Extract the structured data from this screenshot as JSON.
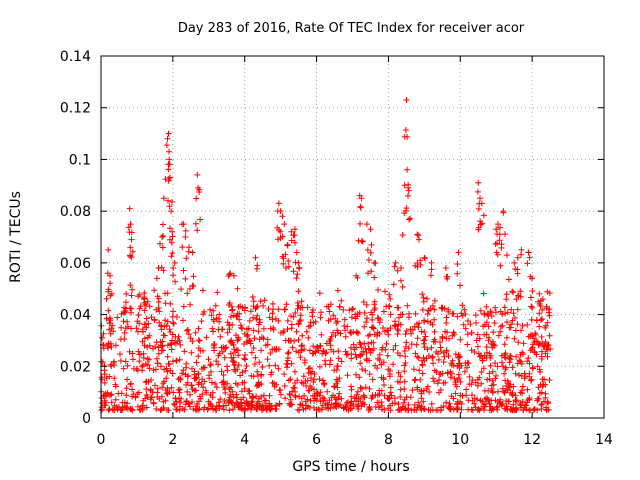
{
  "chart_data": {
    "type": "scatter",
    "title": "Day 283 of 2016, Rate Of TEC Index for receiver acor",
    "xlabel": "GPS time / hours",
    "ylabel": "ROTI / TECUs",
    "xlim": [
      0,
      14
    ],
    "ylim": [
      0,
      0.14
    ],
    "x_ticks": [
      0,
      2,
      4,
      6,
      8,
      10,
      12,
      14
    ],
    "y_ticks": [
      0,
      0.02,
      0.04,
      0.06,
      0.08,
      0.1,
      0.12,
      0.14
    ],
    "x_tick_labels": [
      "0",
      "2",
      "4",
      "6",
      "8",
      "10",
      "12",
      "14"
    ],
    "y_tick_labels": [
      "0",
      "0.02",
      "0.04",
      "0.06",
      "0.08",
      "0.1",
      "0.12",
      "0.14"
    ],
    "grid": true,
    "marker": "plus",
    "color": "#ff0000",
    "x_extent": [
      0,
      12.5
    ],
    "background_band": [
      0.003,
      0.03
    ],
    "highlight_points": [
      {
        "x": 0.2,
        "y": 0.065
      },
      {
        "x": 0.25,
        "y": 0.055
      },
      {
        "x": 0.3,
        "y": 0.048
      },
      {
        "x": 0.7,
        "y": 0.048
      },
      {
        "x": 0.8,
        "y": 0.081
      },
      {
        "x": 0.82,
        "y": 0.075
      },
      {
        "x": 0.85,
        "y": 0.069
      },
      {
        "x": 1.2,
        "y": 0.046
      },
      {
        "x": 1.3,
        "y": 0.045
      },
      {
        "x": 1.6,
        "y": 0.058
      },
      {
        "x": 1.7,
        "y": 0.07
      },
      {
        "x": 1.75,
        "y": 0.085
      },
      {
        "x": 1.85,
        "y": 0.108
      },
      {
        "x": 1.88,
        "y": 0.11
      },
      {
        "x": 1.9,
        "y": 0.1
      },
      {
        "x": 1.92,
        "y": 0.093
      },
      {
        "x": 1.95,
        "y": 0.08
      },
      {
        "x": 1.98,
        "y": 0.072
      },
      {
        "x": 2.05,
        "y": 0.06
      },
      {
        "x": 2.3,
        "y": 0.075
      },
      {
        "x": 2.35,
        "y": 0.07
      },
      {
        "x": 2.45,
        "y": 0.066
      },
      {
        "x": 2.55,
        "y": 0.064
      },
      {
        "x": 2.68,
        "y": 0.094
      },
      {
        "x": 2.7,
        "y": 0.089
      },
      {
        "x": 3.6,
        "y": 0.056
      },
      {
        "x": 3.7,
        "y": 0.055
      },
      {
        "x": 3.8,
        "y": 0.05
      },
      {
        "x": 4.3,
        "y": 0.062
      },
      {
        "x": 4.35,
        "y": 0.059
      },
      {
        "x": 4.95,
        "y": 0.083
      },
      {
        "x": 5.0,
        "y": 0.08
      },
      {
        "x": 5.05,
        "y": 0.078
      },
      {
        "x": 5.1,
        "y": 0.075
      },
      {
        "x": 5.2,
        "y": 0.067
      },
      {
        "x": 5.3,
        "y": 0.072
      },
      {
        "x": 5.4,
        "y": 0.073
      },
      {
        "x": 5.45,
        "y": 0.064
      },
      {
        "x": 5.5,
        "y": 0.06
      },
      {
        "x": 7.1,
        "y": 0.055
      },
      {
        "x": 7.2,
        "y": 0.086
      },
      {
        "x": 7.25,
        "y": 0.085
      },
      {
        "x": 7.4,
        "y": 0.075
      },
      {
        "x": 7.5,
        "y": 0.073
      },
      {
        "x": 7.6,
        "y": 0.06
      },
      {
        "x": 8.2,
        "y": 0.06
      },
      {
        "x": 8.35,
        "y": 0.058
      },
      {
        "x": 8.45,
        "y": 0.09
      },
      {
        "x": 8.5,
        "y": 0.123
      },
      {
        "x": 8.52,
        "y": 0.096
      },
      {
        "x": 8.55,
        "y": 0.089
      },
      {
        "x": 8.8,
        "y": 0.071
      },
      {
        "x": 8.85,
        "y": 0.069
      },
      {
        "x": 9.0,
        "y": 0.062
      },
      {
        "x": 9.2,
        "y": 0.06
      },
      {
        "x": 9.6,
        "y": 0.058
      },
      {
        "x": 9.95,
        "y": 0.064
      },
      {
        "x": 10.5,
        "y": 0.091
      },
      {
        "x": 10.55,
        "y": 0.085
      },
      {
        "x": 10.6,
        "y": 0.083
      },
      {
        "x": 11.0,
        "y": 0.073
      },
      {
        "x": 11.05,
        "y": 0.075
      },
      {
        "x": 11.1,
        "y": 0.071
      },
      {
        "x": 11.2,
        "y": 0.08
      },
      {
        "x": 11.3,
        "y": 0.063
      },
      {
        "x": 11.5,
        "y": 0.06
      },
      {
        "x": 11.6,
        "y": 0.062
      },
      {
        "x": 11.7,
        "y": 0.065
      },
      {
        "x": 11.9,
        "y": 0.064
      },
      {
        "x": 12.0,
        "y": 0.054
      },
      {
        "x": 12.2,
        "y": 0.048
      },
      {
        "x": 12.3,
        "y": 0.046
      },
      {
        "x": 12.4,
        "y": 0.043
      }
    ]
  }
}
